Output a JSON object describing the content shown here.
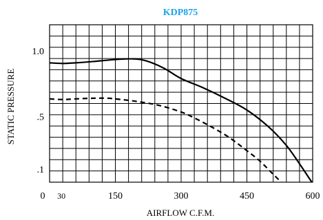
{
  "chart_data": {
    "type": "line",
    "title": "KDP875",
    "title_color": "#1aa3e8",
    "xlabel": "AIRFLOW C.F.M.",
    "ylabel": "STATIC PRESSURE",
    "xlim": [
      0,
      600
    ],
    "ylim": [
      0,
      1.2
    ],
    "grid": true,
    "x_tick_labels": [
      {
        "value": 0,
        "label": "0"
      },
      {
        "value": 30,
        "label": "30"
      },
      {
        "value": 150,
        "label": "150"
      },
      {
        "value": 300,
        "label": "300"
      },
      {
        "value": 450,
        "label": "450"
      },
      {
        "value": 600,
        "label": "600"
      }
    ],
    "y_tick_labels": [
      {
        "value": 0.1,
        "label": ".1"
      },
      {
        "value": 0.5,
        "label": ".5"
      },
      {
        "value": 1.0,
        "label": "1.0"
      }
    ],
    "series": [
      {
        "style": "solid",
        "x": [
          0,
          30,
          60,
          100,
          150,
          190,
          220,
          260,
          300,
          350,
          400,
          450,
          500,
          540,
          570,
          600
        ],
        "y": [
          0.91,
          0.905,
          0.91,
          0.92,
          0.935,
          0.94,
          0.925,
          0.87,
          0.79,
          0.72,
          0.64,
          0.55,
          0.42,
          0.28,
          0.14,
          -0.01
        ]
      },
      {
        "style": "dashed",
        "x": [
          0,
          30,
          60,
          100,
          130,
          150,
          200,
          250,
          300,
          330,
          370,
          410,
          450,
          480,
          510,
          535
        ],
        "y": [
          0.635,
          0.63,
          0.635,
          0.64,
          0.64,
          0.635,
          0.615,
          0.585,
          0.535,
          0.49,
          0.42,
          0.34,
          0.24,
          0.16,
          0.06,
          -0.02
        ]
      }
    ]
  }
}
